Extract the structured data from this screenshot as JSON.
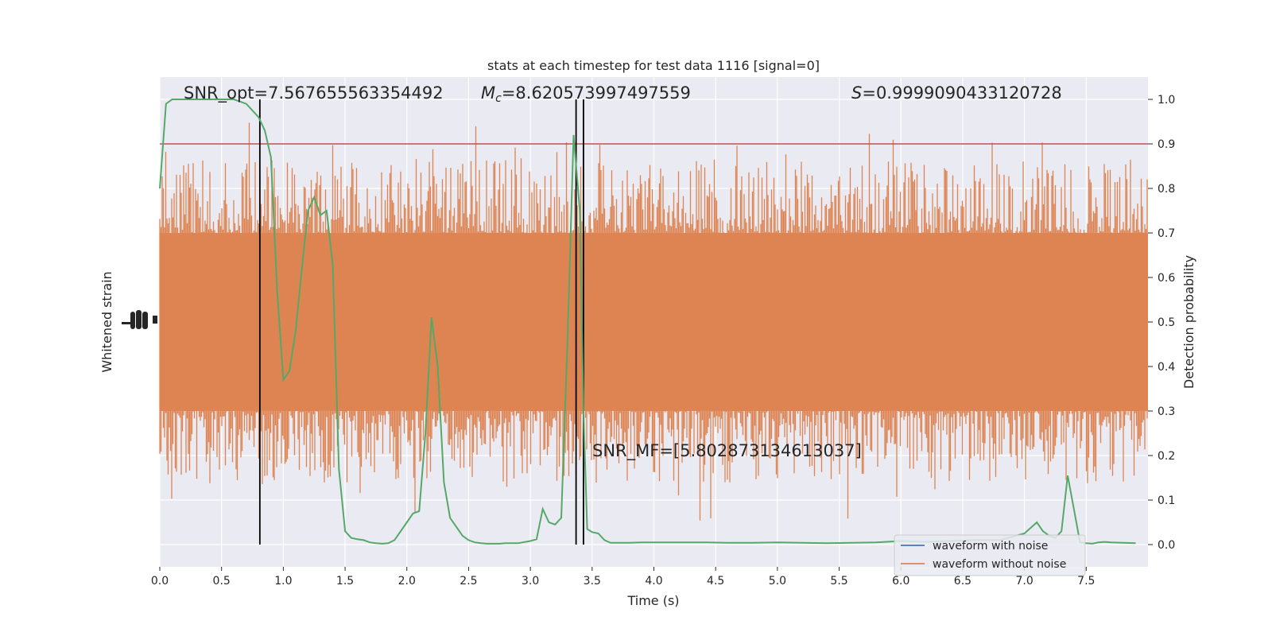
{
  "chart_data": {
    "type": "line",
    "title": "stats at each timestep for test data 1116 [signal=0]",
    "xlabel": "Time (s)",
    "ylabel_left": "Whitened strain",
    "ylabel_right": "Detection probability",
    "xlim": [
      0.0,
      8.0
    ],
    "ylim_right": [
      -0.05,
      1.05
    ],
    "x_ticks": [
      0.0,
      0.5,
      1.0,
      1.5,
      2.0,
      2.5,
      3.0,
      3.5,
      4.0,
      4.5,
      5.0,
      5.5,
      6.0,
      6.5,
      7.0,
      7.5
    ],
    "x_tick_labels": [
      "0.0",
      "0.5",
      "1.0",
      "1.5",
      "2.0",
      "2.5",
      "3.0",
      "3.5",
      "4.0",
      "4.5",
      "5.0",
      "5.5",
      "6.0",
      "6.5",
      "7.0",
      "7.5"
    ],
    "y_ticks_right": [
      0.0,
      0.1,
      0.2,
      0.3,
      0.4,
      0.5,
      0.6,
      0.7,
      0.8,
      0.9,
      1.0
    ],
    "y_tick_labels_right": [
      "0.0",
      "0.1",
      "0.2",
      "0.3",
      "0.4",
      "0.5",
      "0.6",
      "0.7",
      "0.8",
      "0.9",
      "1.0"
    ],
    "grid": true,
    "legend_placement": "lower-right",
    "annotations": {
      "snr_opt": "SNR_opt=7.567655563354492",
      "mc": "=8.620573997497559",
      "mc_symbol": "M",
      "mc_sub": "c",
      "s": "=0.9999090433120728",
      "s_symbol": "S",
      "snr_mf": "SNR_MF=[5.802873134613037]"
    },
    "threshold": 0.9,
    "vertical_lines_x": [
      0.81,
      3.37,
      3.43
    ],
    "noise_band": {
      "center": 0.5,
      "core_half_width": 0.2,
      "max_half_width": 0.42
    },
    "series": [
      {
        "name": "waveform with noise",
        "color": "#4c72b0"
      },
      {
        "name": "waveform without noise",
        "color": "#dd8452"
      },
      {
        "color": "#55a868",
        "x": [
          0.0,
          0.05,
          0.1,
          0.15,
          0.2,
          0.3,
          0.4,
          0.5,
          0.6,
          0.7,
          0.8,
          0.85,
          0.9,
          0.95,
          1.0,
          1.05,
          1.1,
          1.15,
          1.2,
          1.25,
          1.3,
          1.35,
          1.4,
          1.45,
          1.5,
          1.55,
          1.6,
          1.65,
          1.7,
          1.75,
          1.8,
          1.85,
          1.9,
          1.95,
          2.0,
          2.05,
          2.1,
          2.15,
          2.2,
          2.25,
          2.3,
          2.35,
          2.4,
          2.45,
          2.5,
          2.55,
          2.6,
          2.65,
          2.7,
          2.75,
          2.8,
          2.9,
          3.0,
          3.05,
          3.1,
          3.15,
          3.2,
          3.25,
          3.3,
          3.35,
          3.4,
          3.43,
          3.46,
          3.5,
          3.55,
          3.6,
          3.65,
          3.7,
          3.8,
          3.9,
          4.0,
          4.2,
          4.4,
          4.6,
          4.8,
          5.0,
          5.2,
          5.4,
          5.6,
          5.8,
          6.0,
          6.2,
          6.4,
          6.6,
          6.8,
          7.0,
          7.1,
          7.15,
          7.2,
          7.25,
          7.3,
          7.35,
          7.4,
          7.45,
          7.5,
          7.55,
          7.6,
          7.65,
          7.7,
          7.8,
          7.9
        ],
        "y": [
          0.8,
          0.99,
          1.0,
          1.0,
          1.0,
          1.0,
          1.0,
          1.0,
          1.0,
          0.99,
          0.96,
          0.93,
          0.87,
          0.57,
          0.37,
          0.39,
          0.48,
          0.62,
          0.75,
          0.78,
          0.74,
          0.75,
          0.63,
          0.17,
          0.03,
          0.015,
          0.012,
          0.01,
          0.005,
          0.003,
          0.002,
          0.003,
          0.01,
          0.03,
          0.05,
          0.07,
          0.075,
          0.25,
          0.51,
          0.4,
          0.14,
          0.06,
          0.04,
          0.02,
          0.01,
          0.005,
          0.003,
          0.002,
          0.002,
          0.002,
          0.003,
          0.003,
          0.008,
          0.012,
          0.08,
          0.05,
          0.045,
          0.06,
          0.45,
          0.92,
          0.75,
          0.3,
          0.035,
          0.028,
          0.025,
          0.01,
          0.004,
          0.004,
          0.004,
          0.005,
          0.005,
          0.005,
          0.005,
          0.004,
          0.004,
          0.005,
          0.004,
          0.003,
          0.004,
          0.005,
          0.008,
          0.006,
          0.008,
          0.01,
          0.01,
          0.025,
          0.05,
          0.03,
          0.02,
          0.015,
          0.03,
          0.155,
          0.08,
          0.005,
          0.003,
          0.002,
          0.005,
          0.006,
          0.005,
          0.004,
          0.003
        ]
      }
    ]
  }
}
